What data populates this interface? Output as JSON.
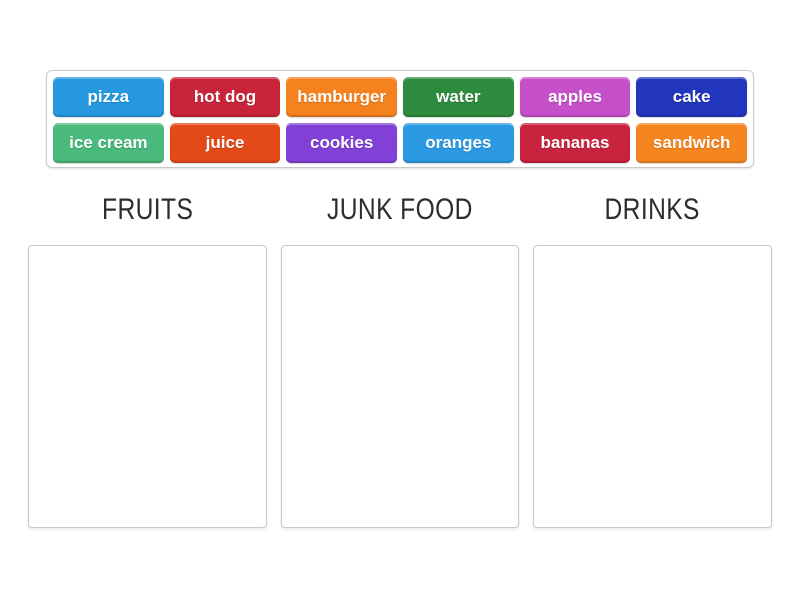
{
  "tray": {
    "items": [
      {
        "label": "pizza",
        "color": "#2598e0"
      },
      {
        "label": "hot dog",
        "color": "#c8253a"
      },
      {
        "label": "hamburger",
        "color": "#f5821f"
      },
      {
        "label": "water",
        "color": "#2e8b3d"
      },
      {
        "label": "apples",
        "color": "#c650ca"
      },
      {
        "label": "cake",
        "color": "#2236bd"
      },
      {
        "label": "ice cream",
        "color": "#49b97c"
      },
      {
        "label": "juice",
        "color": "#e34a18"
      },
      {
        "label": "cookies",
        "color": "#8140d6"
      },
      {
        "label": "oranges",
        "color": "#2b9ae2"
      },
      {
        "label": "bananas",
        "color": "#c8233f"
      },
      {
        "label": "sandwich",
        "color": "#f5861f"
      }
    ]
  },
  "categories": [
    {
      "label": "FRUITS"
    },
    {
      "label": "JUNK FOOD"
    },
    {
      "label": "DRINKS"
    }
  ],
  "colors": {
    "page_background": "#ffffff",
    "tray_border": "#c9c9c9",
    "zone_border": "#c8c8c8",
    "header_text": "#2d2d2d",
    "chip_text": "#ffffff"
  }
}
